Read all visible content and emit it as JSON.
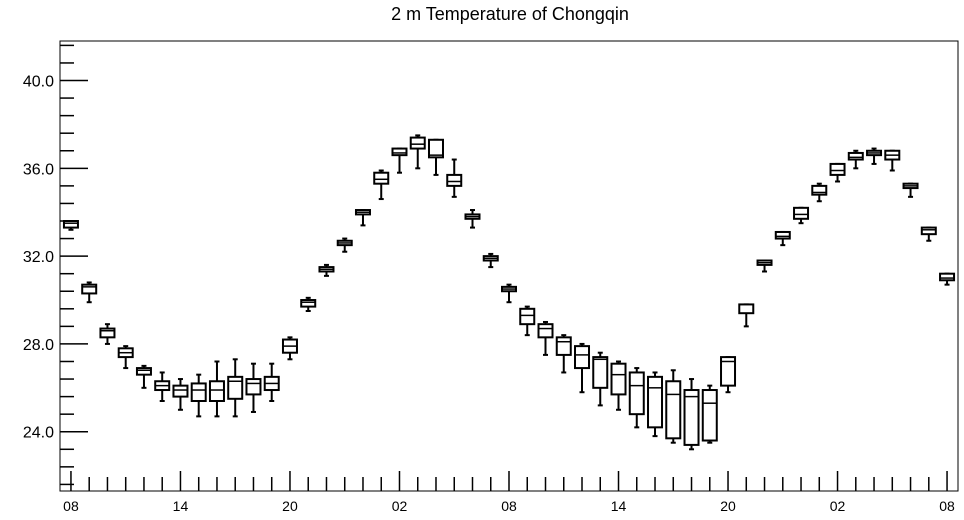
{
  "chart_data": {
    "type": "box",
    "title": "2 m Temperature of Chongqin",
    "xlabel": "",
    "ylabel": "",
    "ylim": [
      21.3,
      41.8
    ],
    "y_ticks": [
      24.0,
      28.0,
      32.0,
      36.0,
      40.0
    ],
    "y_tick_labels": [
      "24.0",
      "28.0",
      "32.0",
      "36.0",
      "40.0"
    ],
    "x_tick_labels": [
      "08",
      "14",
      "20",
      "02",
      "08",
      "14",
      "20",
      "02",
      "08"
    ],
    "x_labeled_hours": [
      0,
      6,
      12,
      18,
      24,
      30,
      36,
      42,
      48
    ],
    "x_axis_hours": [
      -0.6,
      48.6
    ],
    "hourly_x_step": 1,
    "boxes": [
      {
        "hour": 0,
        "min": 33.2,
        "q1": 33.3,
        "median": 33.5,
        "q3": 33.6,
        "max": 33.6
      },
      {
        "hour": 1,
        "min": 29.9,
        "q1": 30.3,
        "median": 30.6,
        "q3": 30.7,
        "max": 30.8
      },
      {
        "hour": 2,
        "min": 28.0,
        "q1": 28.3,
        "median": 28.6,
        "q3": 28.7,
        "max": 28.9
      },
      {
        "hour": 3,
        "min": 26.9,
        "q1": 27.4,
        "median": 27.6,
        "q3": 27.8,
        "max": 27.9
      },
      {
        "hour": 4,
        "min": 26.0,
        "q1": 26.6,
        "median": 26.8,
        "q3": 26.9,
        "max": 27.0
      },
      {
        "hour": 5,
        "min": 25.4,
        "q1": 25.9,
        "median": 26.1,
        "q3": 26.3,
        "max": 26.7
      },
      {
        "hour": 6,
        "min": 25.0,
        "q1": 25.6,
        "median": 25.9,
        "q3": 26.1,
        "max": 26.4
      },
      {
        "hour": 7,
        "min": 24.7,
        "q1": 25.4,
        "median": 25.9,
        "q3": 26.2,
        "max": 26.6
      },
      {
        "hour": 8,
        "min": 24.7,
        "q1": 25.4,
        "median": 25.9,
        "q3": 26.3,
        "max": 27.2
      },
      {
        "hour": 9,
        "min": 24.7,
        "q1": 25.5,
        "median": 26.3,
        "q3": 26.5,
        "max": 27.3
      },
      {
        "hour": 10,
        "min": 24.9,
        "q1": 25.7,
        "median": 26.2,
        "q3": 26.4,
        "max": 27.1
      },
      {
        "hour": 11,
        "min": 25.4,
        "q1": 25.9,
        "median": 26.2,
        "q3": 26.5,
        "max": 27.1
      },
      {
        "hour": 12,
        "min": 27.3,
        "q1": 27.6,
        "median": 27.9,
        "q3": 28.2,
        "max": 28.3
      },
      {
        "hour": 13,
        "min": 29.5,
        "q1": 29.7,
        "median": 29.9,
        "q3": 30.0,
        "max": 30.1
      },
      {
        "hour": 14,
        "min": 31.1,
        "q1": 31.3,
        "median": 31.4,
        "q3": 31.5,
        "max": 31.6
      },
      {
        "hour": 15,
        "min": 32.2,
        "q1": 32.5,
        "median": 32.6,
        "q3": 32.7,
        "max": 32.8
      },
      {
        "hour": 16,
        "min": 33.4,
        "q1": 33.9,
        "median": 34.0,
        "q3": 34.1,
        "max": 34.1
      },
      {
        "hour": 17,
        "min": 34.6,
        "q1": 35.3,
        "median": 35.5,
        "q3": 35.8,
        "max": 35.9
      },
      {
        "hour": 18,
        "min": 35.8,
        "q1": 36.6,
        "median": 36.7,
        "q3": 36.9,
        "max": 36.9
      },
      {
        "hour": 19,
        "min": 36.0,
        "q1": 36.9,
        "median": 37.1,
        "q3": 37.4,
        "max": 37.5
      },
      {
        "hour": 20,
        "min": 35.7,
        "q1": 36.5,
        "median": 36.6,
        "q3": 37.3,
        "max": 37.3
      },
      {
        "hour": 21,
        "min": 34.7,
        "q1": 35.2,
        "median": 35.4,
        "q3": 35.7,
        "max": 36.4
      },
      {
        "hour": 22,
        "min": 33.3,
        "q1": 33.7,
        "median": 33.8,
        "q3": 33.9,
        "max": 34.1
      },
      {
        "hour": 23,
        "min": 31.5,
        "q1": 31.8,
        "median": 31.9,
        "q3": 32.0,
        "max": 32.1
      },
      {
        "hour": 24,
        "min": 29.9,
        "q1": 30.4,
        "median": 30.5,
        "q3": 30.6,
        "max": 30.7
      },
      {
        "hour": 25,
        "min": 28.4,
        "q1": 28.9,
        "median": 29.3,
        "q3": 29.6,
        "max": 29.7
      },
      {
        "hour": 26,
        "min": 27.5,
        "q1": 28.3,
        "median": 28.7,
        "q3": 28.9,
        "max": 29.0
      },
      {
        "hour": 27,
        "min": 26.7,
        "q1": 27.5,
        "median": 28.1,
        "q3": 28.3,
        "max": 28.4
      },
      {
        "hour": 28,
        "min": 25.8,
        "q1": 26.9,
        "median": 27.5,
        "q3": 27.9,
        "max": 28.0
      },
      {
        "hour": 29,
        "min": 25.2,
        "q1": 26.0,
        "median": 27.3,
        "q3": 27.4,
        "max": 27.6
      },
      {
        "hour": 30,
        "min": 25.0,
        "q1": 25.7,
        "median": 26.6,
        "q3": 27.1,
        "max": 27.2
      },
      {
        "hour": 31,
        "min": 24.2,
        "q1": 24.8,
        "median": 26.1,
        "q3": 26.7,
        "max": 26.9
      },
      {
        "hour": 32,
        "min": 23.8,
        "q1": 24.2,
        "median": 26.0,
        "q3": 26.5,
        "max": 26.7
      },
      {
        "hour": 33,
        "min": 23.5,
        "q1": 23.7,
        "median": 25.7,
        "q3": 26.3,
        "max": 26.8
      },
      {
        "hour": 34,
        "min": 23.2,
        "q1": 23.4,
        "median": 25.6,
        "q3": 25.9,
        "max": 26.4
      },
      {
        "hour": 35,
        "min": 23.5,
        "q1": 23.6,
        "median": 25.3,
        "q3": 25.9,
        "max": 26.1
      },
      {
        "hour": 36,
        "min": 25.8,
        "q1": 26.1,
        "median": 27.2,
        "q3": 27.4,
        "max": 27.4
      },
      {
        "hour": 37,
        "min": 28.8,
        "q1": 29.4,
        "median": 29.8,
        "q3": 29.8,
        "max": 29.8
      },
      {
        "hour": 38,
        "min": 31.3,
        "q1": 31.6,
        "median": 31.7,
        "q3": 31.8,
        "max": 31.8
      },
      {
        "hour": 39,
        "min": 32.5,
        "q1": 32.8,
        "median": 32.9,
        "q3": 33.1,
        "max": 33.1
      },
      {
        "hour": 40,
        "min": 33.5,
        "q1": 33.7,
        "median": 33.9,
        "q3": 34.2,
        "max": 34.2
      },
      {
        "hour": 41,
        "min": 34.5,
        "q1": 34.8,
        "median": 34.9,
        "q3": 35.2,
        "max": 35.3
      },
      {
        "hour": 42,
        "min": 35.4,
        "q1": 35.7,
        "median": 35.9,
        "q3": 36.2,
        "max": 36.2
      },
      {
        "hour": 43,
        "min": 36.0,
        "q1": 36.4,
        "median": 36.5,
        "q3": 36.7,
        "max": 36.8
      },
      {
        "hour": 44,
        "min": 36.2,
        "q1": 36.6,
        "median": 36.7,
        "q3": 36.8,
        "max": 36.9
      },
      {
        "hour": 45,
        "min": 35.9,
        "q1": 36.4,
        "median": 36.6,
        "q3": 36.8,
        "max": 36.8
      },
      {
        "hour": 46,
        "min": 34.7,
        "q1": 35.1,
        "median": 35.2,
        "q3": 35.3,
        "max": 35.3
      },
      {
        "hour": 47,
        "min": 32.7,
        "q1": 33.0,
        "median": 33.2,
        "q3": 33.3,
        "max": 33.3
      },
      {
        "hour": 48,
        "min": 30.7,
        "q1": 30.9,
        "median": 31.0,
        "q3": 31.2,
        "max": 31.2
      }
    ],
    "grid": false,
    "legend": "none"
  }
}
